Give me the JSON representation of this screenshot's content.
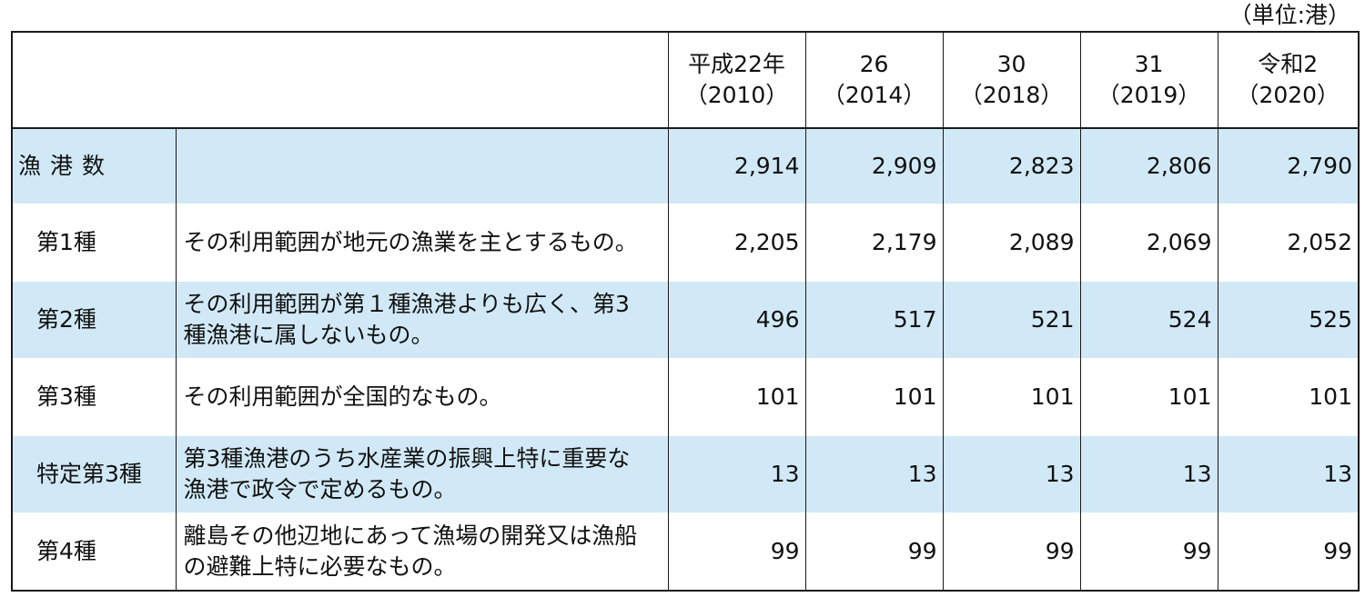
{
  "unit_label": "（単位:港）",
  "table": {
    "columns": [
      {
        "line1": "平成22年",
        "line2": "（2010）"
      },
      {
        "line1": "26",
        "line2": "（2014）"
      },
      {
        "line1": "30",
        "line2": "（2018）"
      },
      {
        "line1": "31",
        "line2": "（2019）"
      },
      {
        "line1": "令和2",
        "line2": "（2020）"
      }
    ],
    "rows": [
      {
        "category": "漁港数",
        "description": "",
        "values": [
          "2,914",
          "2,909",
          "2,823",
          "2,806",
          "2,790"
        ]
      },
      {
        "category": "第1種",
        "description": "その利用範囲が地元の漁業を主とするもの。",
        "values": [
          "2,205",
          "2,179",
          "2,089",
          "2,069",
          "2,052"
        ]
      },
      {
        "category": "第2種",
        "description": "その利用範囲が第１種漁港よりも広く、第3種漁港に属しないもの。",
        "values": [
          "496",
          "517",
          "521",
          "524",
          "525"
        ]
      },
      {
        "category": "第3種",
        "description": "その利用範囲が全国的なもの。",
        "values": [
          "101",
          "101",
          "101",
          "101",
          "101"
        ]
      },
      {
        "category": "特定第3種",
        "description": "第3種漁港のうち水産業の振興上特に重要な漁港で政令で定めるもの。",
        "values": [
          "13",
          "13",
          "13",
          "13",
          "13"
        ]
      },
      {
        "category": "第4種",
        "description": "離島その他辺地にあって漁場の開発又は漁船の避難上特に必要なもの。",
        "values": [
          "99",
          "99",
          "99",
          "99",
          "99"
        ]
      }
    ]
  }
}
